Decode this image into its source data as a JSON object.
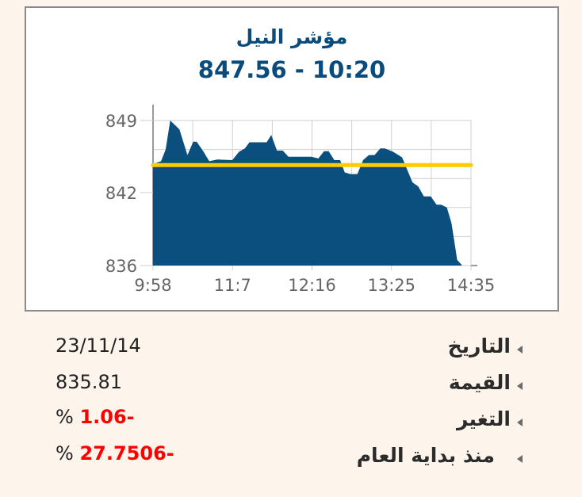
{
  "header": {
    "title": "مؤشر النيل",
    "subtitle": "847.56 - 10:20"
  },
  "chart_data": {
    "type": "area",
    "title": "مؤشر النيل",
    "subtitle": "847.56 - 10:20",
    "x_ticks": [
      "9:58",
      "11:7",
      "12:16",
      "13:25",
      "14:35"
    ],
    "y_ticks": [
      849,
      842,
      836
    ],
    "xlim": [
      "9:58",
      "14:35"
    ],
    "ylim": [
      836,
      849
    ],
    "grid": true,
    "area_color": "#0a4f7d",
    "reference_line": {
      "value": 845.0,
      "color": "#ffcc00"
    },
    "x": [
      "9:58",
      "10:05",
      "10:09",
      "10:13",
      "10:21",
      "10:28",
      "10:33",
      "10:36",
      "10:42",
      "10:47",
      "10:54",
      "11:07",
      "11:13",
      "11:18",
      "11:22",
      "11:37",
      "11:41",
      "11:46",
      "11:51",
      "11:56",
      "12:16",
      "12:22",
      "12:27",
      "12:31",
      "12:36",
      "12:41",
      "12:45",
      "12:50",
      "12:56",
      "13:01",
      "13:06",
      "13:11",
      "13:16",
      "13:20",
      "13:27",
      "13:35",
      "13:44",
      "13:49",
      "13:54",
      "14:00",
      "14:05",
      "14:09",
      "14:14",
      "14:18",
      "14:23",
      "14:27"
    ],
    "values": [
      845.1,
      845.35,
      846.4,
      849.0,
      848.2,
      845.9,
      847.1,
      847.1,
      846.2,
      845.35,
      845.5,
      845.45,
      846.2,
      846.5,
      847.05,
      847.05,
      847.7,
      846.3,
      846.3,
      845.75,
      845.75,
      845.6,
      846.25,
      846.25,
      845.45,
      845.45,
      844.35,
      844.2,
      844.2,
      845.45,
      845.9,
      845.9,
      846.5,
      846.5,
      846.2,
      845.7,
      843.45,
      843.1,
      842.2,
      842.2,
      841.45,
      841.45,
      841.2,
      839.8,
      836.5,
      836.05
    ]
  },
  "info": [
    {
      "label": "التاريخ",
      "value": "23/11/14",
      "suffix": ""
    },
    {
      "label": "القيمة",
      "value": "835.81",
      "suffix": ""
    },
    {
      "label": "التغير",
      "value": "1.06-",
      "suffix": "%"
    },
    {
      "label": "منذ بداية العام",
      "value": "27.7506-",
      "suffix": "%"
    }
  ],
  "colors": {
    "title": "#0a4b7b",
    "negative": "#ff0000",
    "background": "#fdf5ec"
  }
}
